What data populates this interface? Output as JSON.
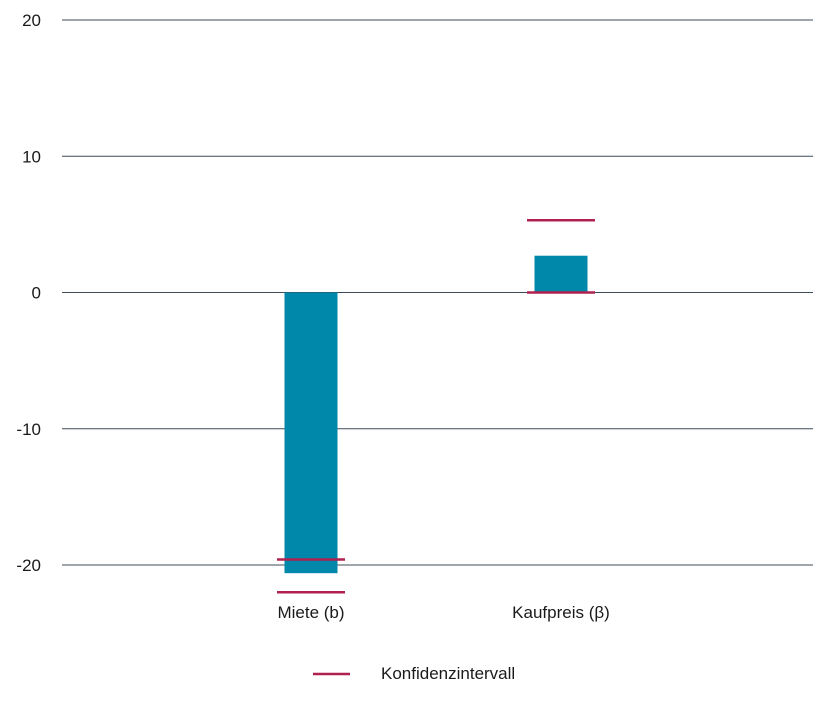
{
  "chart_data": {
    "type": "bar",
    "categories": [
      "Miete (b)",
      "Kaufpreis (β)"
    ],
    "values": [
      -20.6,
      2.7
    ],
    "confidence_intervals": [
      {
        "lower": -22.0,
        "upper": -19.6
      },
      {
        "lower": 0.0,
        "upper": 5.3
      }
    ],
    "ylim": [
      -20,
      20
    ],
    "yticks": [
      20,
      10,
      0,
      -10,
      -20
    ],
    "ytick_labels": [
      "20",
      "10",
      "0",
      "-10",
      "-20"
    ],
    "grid": true,
    "legend": {
      "position": "bottom-center",
      "entries": [
        {
          "label": "Konfidenzintervall",
          "marker": "line"
        }
      ]
    },
    "colors": {
      "bar": "#0088aa",
      "interval": "#b0214f",
      "grid": "#3c4e5a",
      "text": "#1a1a1a"
    }
  }
}
